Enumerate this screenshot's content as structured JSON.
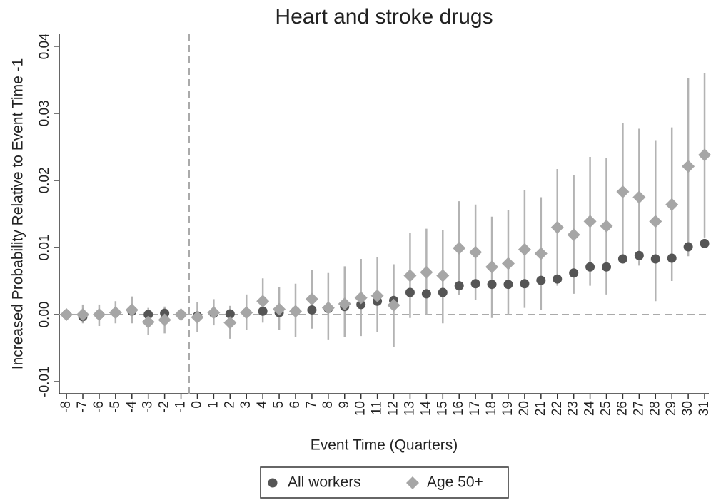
{
  "chart_data": {
    "type": "scatter",
    "title": "Heart and stroke drugs",
    "xlabel": "Event Time (Quarters)",
    "ylabel": "Increased Probability Relative to Event Time -1",
    "x": [
      -8,
      -7,
      -6,
      -5,
      -4,
      -3,
      -2,
      -1,
      0,
      1,
      2,
      3,
      4,
      5,
      6,
      7,
      8,
      9,
      10,
      11,
      12,
      13,
      14,
      15,
      16,
      17,
      18,
      19,
      20,
      21,
      22,
      23,
      24,
      25,
      26,
      27,
      28,
      29,
      30,
      31
    ],
    "series": [
      {
        "name": "All workers",
        "color": "#555555",
        "marker": "circle",
        "values": [
          0,
          -0.0003,
          0,
          0.0003,
          0.0005,
          0,
          0.0002,
          0,
          -0.0002,
          0.0002,
          0.0001,
          0.0003,
          0.0005,
          0.0003,
          0.0005,
          0.0007,
          0.0009,
          0.0012,
          0.0015,
          0.002,
          0.0021,
          0.0033,
          0.0031,
          0.0033,
          0.0043,
          0.0046,
          0.0045,
          0.0045,
          0.0046,
          0.0051,
          0.0053,
          0.0062,
          0.0071,
          0.0071,
          0.0083,
          0.0088,
          0.0083,
          0.0084,
          0.0101,
          0.0106
        ]
      },
      {
        "name": "Age 50+",
        "color": "#a6a6a6",
        "marker": "diamond",
        "error_color": "#b3b3b3",
        "values": [
          0,
          0,
          0,
          0.0003,
          0.0007,
          -0.0011,
          -0.0008,
          0,
          -0.0004,
          0.0003,
          -0.0012,
          0.0003,
          0.002,
          0.0008,
          0.0005,
          0.0023,
          0.001,
          0.0016,
          0.0025,
          0.0028,
          0.0014,
          0.0058,
          0.0063,
          0.0058,
          0.0099,
          0.0093,
          0.0071,
          0.0076,
          0.0097,
          0.0091,
          0.013,
          0.0119,
          0.0139,
          0.0132,
          0.0183,
          0.0175,
          0.0139,
          0.0164,
          0.0221,
          0.0238
        ],
        "lower": [
          -0.0005,
          -0.0013,
          -0.0017,
          -0.0013,
          -0.0013,
          -0.003,
          -0.0028,
          0,
          -0.0026,
          -0.0016,
          -0.0036,
          -0.0023,
          -0.0012,
          -0.0023,
          -0.0034,
          -0.0021,
          -0.0037,
          -0.0033,
          -0.0032,
          -0.0026,
          -0.0048,
          -0.0005,
          0,
          -0.0013,
          0.0029,
          0.0022,
          -0.0005,
          0,
          0.001,
          0.0007,
          0.0043,
          0.0031,
          0.0043,
          0.003,
          0.0081,
          0.0073,
          0.002,
          0.005,
          0.0087,
          0.0115
        ],
        "upper": [
          0.0005,
          0.0015,
          0.0015,
          0.002,
          0.0027,
          0.001,
          0.0012,
          0,
          0.0019,
          0.0023,
          0.0013,
          0.003,
          0.0054,
          0.0041,
          0.0046,
          0.0066,
          0.0062,
          0.0072,
          0.0083,
          0.0086,
          0.0075,
          0.0122,
          0.0128,
          0.0126,
          0.0169,
          0.0164,
          0.0146,
          0.0156,
          0.0186,
          0.0175,
          0.0217,
          0.0208,
          0.0235,
          0.0234,
          0.0285,
          0.0277,
          0.026,
          0.0279,
          0.0353,
          0.036
        ]
      }
    ],
    "xlim": [
      -8.44,
      31.26
    ],
    "ylim": [
      -0.0118,
      0.0419
    ],
    "xticks": [
      -8,
      -7,
      -6,
      -5,
      -4,
      -3,
      -2,
      -1,
      0,
      1,
      2,
      3,
      4,
      5,
      6,
      7,
      8,
      9,
      10,
      11,
      12,
      13,
      14,
      15,
      16,
      17,
      18,
      19,
      20,
      21,
      22,
      23,
      24,
      25,
      26,
      27,
      28,
      29,
      30,
      31
    ],
    "yticks": [
      -0.01,
      {
        "value": 0,
        "label": "0.00"
      },
      0.01,
      0.02,
      0.03,
      0.04
    ],
    "vline": -0.5,
    "hline": 0,
    "legend": "bottom"
  }
}
